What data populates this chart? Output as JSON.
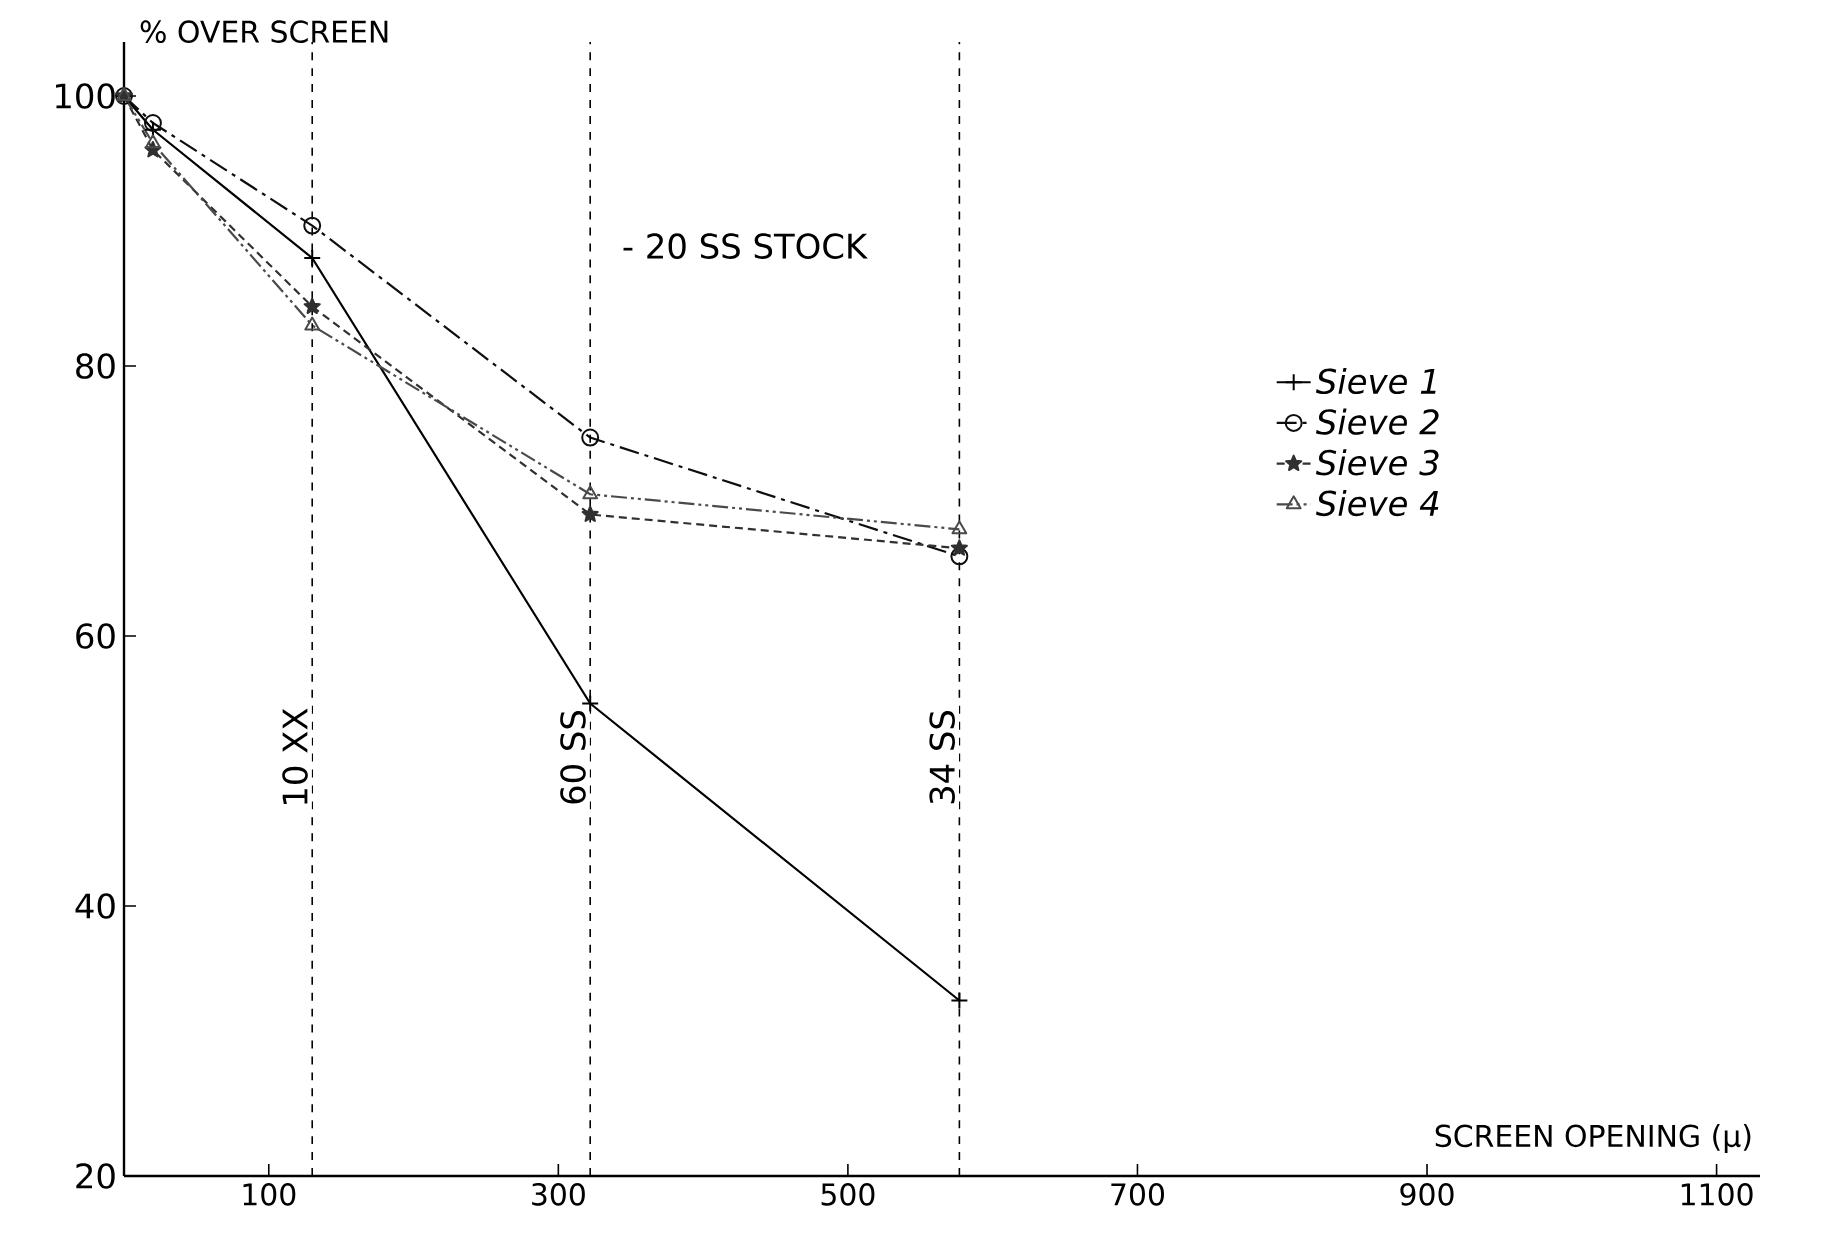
{
  "chart_data": {
    "type": "line",
    "xlabel": "SCREEN OPENING (µ)",
    "ylabel": "% OVER SCREEN",
    "annotations": [
      "- 20 SS STOCK"
    ],
    "xlim": [
      0,
      1130
    ],
    "ylim": [
      20,
      104
    ],
    "xticks": [
      100,
      300,
      500,
      700,
      900,
      1100
    ],
    "yticks": [
      20,
      40,
      60,
      80,
      100
    ],
    "series": [
      {
        "name": "Sieve 1",
        "color": "#000000",
        "marker": "cross",
        "line_style": "solid",
        "x": [
          0,
          20,
          130,
          322,
          577
        ],
        "values": [
          100,
          97.5,
          88,
          55,
          33
        ]
      },
      {
        "name": "Sieve 2",
        "color": "#0e0e0e",
        "marker": "circle",
        "line_style": "dashed",
        "x": [
          0,
          20,
          130,
          322,
          577
        ],
        "values": [
          100,
          98,
          90.4,
          74.7,
          65.9
        ]
      },
      {
        "name": "Sieve 3",
        "color": "#303030",
        "marker": "star",
        "line_style": "dotted",
        "x": [
          0,
          20,
          130,
          322,
          577
        ],
        "values": [
          100,
          96,
          84.4,
          69,
          66.5
        ]
      },
      {
        "name": "Sieve 4",
        "color": "#4a4a4a",
        "marker": "triangle",
        "line_style": "dashed",
        "x": [
          0,
          20,
          130,
          322,
          577
        ],
        "values": [
          100,
          96.5,
          83,
          70.5,
          67.9
        ]
      }
    ],
    "ref_lines": [
      {
        "axis": "x",
        "value": 130,
        "label": "10 XX",
        "line_style": "dashed"
      },
      {
        "axis": "x",
        "value": 322,
        "label": "60 SS",
        "line_style": "dashed"
      },
      {
        "axis": "x",
        "value": 577,
        "label": "34 SS",
        "line_style": "dashed"
      }
    ],
    "legend": "right",
    "grid": false
  }
}
